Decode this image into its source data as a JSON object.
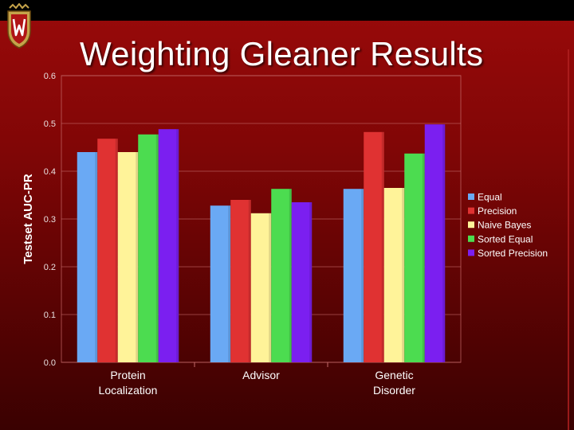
{
  "slide": {
    "title": "Weighting Gleaner Results"
  },
  "colors": {
    "equal": "#6aa9f4",
    "precision": "#e03232",
    "naive_bayes": "#fff399",
    "sorted_equal": "#4cdc50",
    "sorted_precision": "#7b1ff0"
  },
  "chart_data": {
    "type": "bar",
    "title": "",
    "xlabel": "",
    "ylabel": "Testset AUC-PR",
    "ylim": [
      0.0,
      0.6
    ],
    "yticks": [
      "0.0",
      "0.1",
      "0.2",
      "0.3",
      "0.4",
      "0.5",
      "0.6"
    ],
    "categories": [
      [
        "Protein",
        "Localization"
      ],
      [
        "Advisor"
      ],
      [
        "Genetic",
        "Disorder"
      ]
    ],
    "legend_position": "right",
    "grid": true,
    "series": [
      {
        "name": "Equal",
        "color": "#6aa9f4",
        "values": [
          0.44,
          0.328,
          0.363
        ]
      },
      {
        "name": "Precision",
        "color": "#e03232",
        "values": [
          0.468,
          0.34,
          0.482
        ]
      },
      {
        "name": "Naive Bayes",
        "color": "#fff399",
        "values": [
          0.44,
          0.312,
          0.365
        ]
      },
      {
        "name": "Sorted Equal",
        "color": "#4cdc50",
        "values": [
          0.477,
          0.363,
          0.437
        ]
      },
      {
        "name": "Sorted Precision",
        "color": "#7b1ff0",
        "values": [
          0.488,
          0.335,
          0.498
        ]
      }
    ]
  }
}
